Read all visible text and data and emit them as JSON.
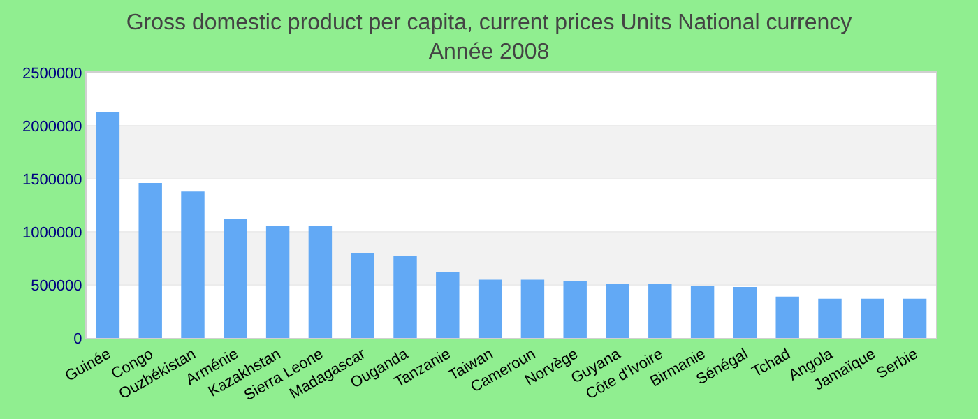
{
  "chart_data": {
    "type": "bar",
    "title": "Gross domestic product per capita, current prices Units National currency",
    "subtitle": "Année 2008",
    "categories": [
      "Guinée",
      "Congo",
      "Ouzbékistan",
      "Arménie",
      "Kazakhstan",
      "Sierra Leone",
      "Madagascar",
      "Ouganda",
      "Tanzanie",
      "Taiwan",
      "Cameroun",
      "Norvège",
      "Guyana",
      "Côte d'Ivoire",
      "Birmanie",
      "Sénégal",
      "Tchad",
      "Angola",
      "Jamaïque",
      "Serbie"
    ],
    "values": [
      2130000,
      1460000,
      1380000,
      1120000,
      1060000,
      1060000,
      800000,
      770000,
      620000,
      550000,
      550000,
      540000,
      510000,
      510000,
      490000,
      480000,
      390000,
      370000,
      370000,
      370000
    ],
    "color": "#62a9f5",
    "ylim": [
      0,
      2500000
    ],
    "yticks": [
      0,
      500000,
      1000000,
      1500000,
      2000000,
      2500000
    ],
    "grid": "y"
  }
}
